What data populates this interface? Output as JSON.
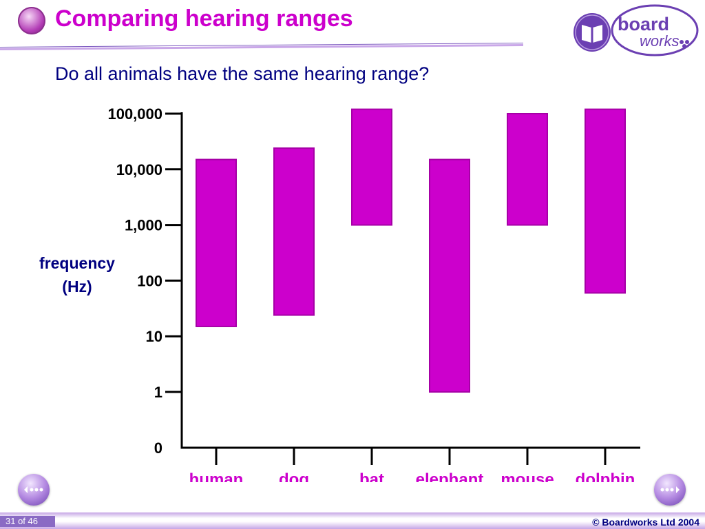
{
  "header": {
    "title": "Comparing hearing ranges",
    "logo_text": "board works"
  },
  "subtitle": "Do all animals have the same hearing range?",
  "chart_data": {
    "type": "bar",
    "subtype": "floating-range",
    "title": "",
    "ylabel": "frequency (Hz)",
    "ylabel_lines": [
      "frequency",
      "(Hz)"
    ],
    "yscale": "log",
    "ylim": [
      0,
      100000
    ],
    "yticks": [
      {
        "value": 0,
        "label": "0"
      },
      {
        "value": 1,
        "label": "1"
      },
      {
        "value": 10,
        "label": "10"
      },
      {
        "value": 100,
        "label": "100"
      },
      {
        "value": 1000,
        "label": "1,000"
      },
      {
        "value": 10000,
        "label": "10,000"
      },
      {
        "value": 100000,
        "label": "100,000"
      }
    ],
    "categories": [
      "human",
      "dog",
      "bat",
      "elephant",
      "mouse",
      "dolphin"
    ],
    "ranges": [
      {
        "low": 15,
        "high": 15000
      },
      {
        "low": 24,
        "high": 24000
      },
      {
        "low": 1000,
        "high": 120000
      },
      {
        "low": 1,
        "high": 15000
      },
      {
        "low": 1000,
        "high": 100000
      },
      {
        "low": 60,
        "high": 120000
      }
    ],
    "bar_color": "#cc00cc",
    "bar_edge_color": "#a600a6",
    "axis_color": "#000000",
    "category_label_color": "#cc00cc",
    "ylabel_color": "#000080",
    "grid": false,
    "legend": "none"
  },
  "footer": {
    "page": "31 of 46",
    "copyright": "© Boardworks Ltd 2004"
  },
  "icons": {
    "prev": "previous-slide-icon",
    "next": "next-slide-icon",
    "logo_left": "boardworks-mascot-icon"
  }
}
